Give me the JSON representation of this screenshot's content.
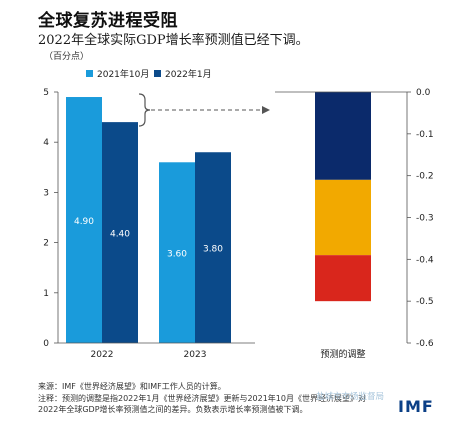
{
  "header": {
    "title": "全球复苏进程受阻",
    "subtitle": "2022年全球实际GDP增长率预测值已经下调。",
    "unit": "（百分点）"
  },
  "chart_data": [
    {
      "type": "bar",
      "categories": [
        "2022",
        "2023"
      ],
      "series": [
        {
          "name": "2021年10月",
          "color": "#1a9bdb",
          "values": [
            4.9,
            3.6
          ]
        },
        {
          "name": "2022年1月",
          "color": "#0b4a8a",
          "values": [
            4.4,
            3.8
          ]
        }
      ],
      "data_labels": [
        [
          "4.90",
          "3.60"
        ],
        [
          "4.40",
          "3.80"
        ]
      ],
      "ylim": [
        0,
        5
      ],
      "yticks": [
        "0",
        "1",
        "2",
        "3",
        "4",
        "5"
      ],
      "legend": "top-left"
    },
    {
      "type": "bar",
      "stacked": true,
      "categories": [
        "预测的调整"
      ],
      "segments": [
        {
          "color": "#0b2a6b",
          "from": 0.0,
          "to": -0.21
        },
        {
          "color": "#f2a900",
          "from": -0.21,
          "to": -0.39
        },
        {
          "color": "#d9261c",
          "from": -0.39,
          "to": -0.5
        }
      ],
      "ylim": [
        -0.6,
        0.0
      ],
      "yticks": [
        "0.0",
        "-0.1",
        "-0.2",
        "-0.3",
        "-0.4",
        "-0.5",
        "-0.6"
      ],
      "axis_side": "right"
    }
  ],
  "footnotes": {
    "source": "来源：IMF《世界经济展望》和IMF工作人员的计算。",
    "note_line1": "注释：预测的调整是指2022年1月《世界经济展望》更新与2021年10月《世界经济展望》对",
    "note_line2": "2022年全球GDP增长率预测值之间的差异。负数表示增长率预测值被下调。"
  },
  "watermark": "盐城市市场监督局",
  "logo": "IMF"
}
